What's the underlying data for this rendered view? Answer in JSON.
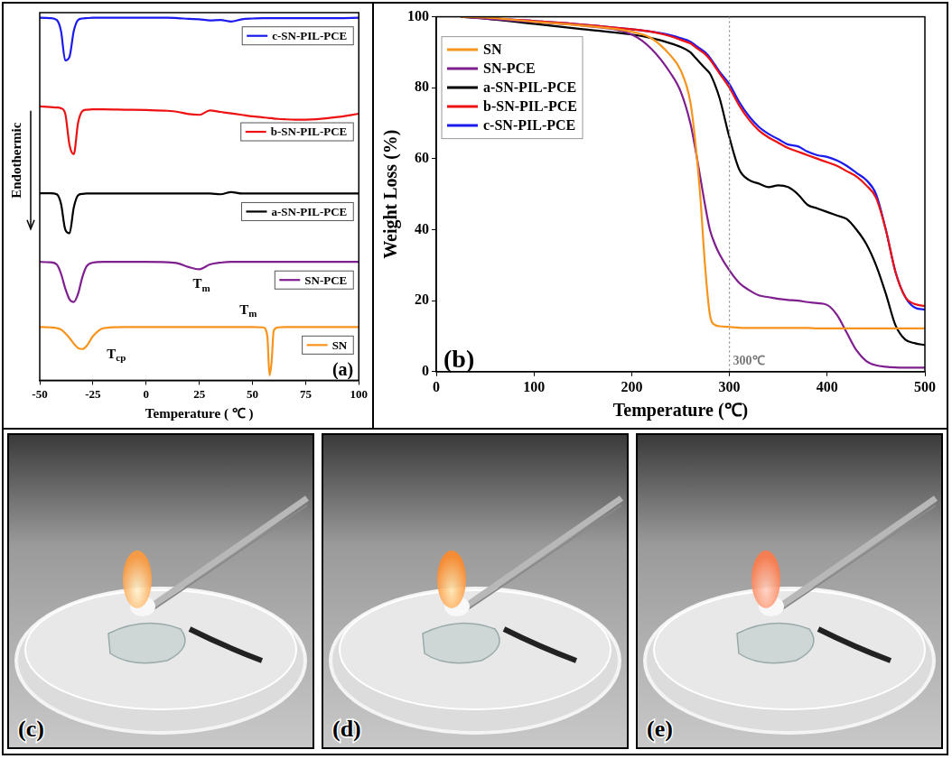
{
  "chart_data": [
    {
      "type": "line",
      "panel": "(a)",
      "xlabel": "Temperature ( ℃ )",
      "ylabel": "Endothermic",
      "x": [
        -50,
        -45,
        -42,
        -40,
        -38,
        -36,
        -34,
        -32,
        -30,
        -28,
        -25,
        -20,
        -10,
        0,
        10,
        15,
        20,
        25,
        30,
        35,
        40,
        45,
        50,
        55,
        57,
        58,
        59,
        60,
        62,
        65,
        70,
        75,
        80,
        90,
        100
      ],
      "series": [
        {
          "name": "c-SN-PIL-PCE",
          "color": "#1a1aee",
          "values": [
            98.6,
            98.5,
            98.0,
            95,
            87,
            88,
            95,
            98,
            98.4,
            98.5,
            98.6,
            98.6,
            98.6,
            98.6,
            98.6,
            98.5,
            98.3,
            98.2,
            97.9,
            98.0,
            97.6,
            98.2,
            98.4,
            98.5,
            98.5,
            98.5,
            98.5,
            98.5,
            98.5,
            98.5,
            98.5,
            98.5,
            98.5,
            98.5,
            98.6
          ]
        },
        {
          "name": "b-SN-PIL-PCE",
          "color": "#ee1111",
          "values": [
            74.5,
            74.3,
            74.2,
            74,
            72.5,
            64,
            61.5,
            70,
            73.2,
            73.6,
            73.7,
            73.7,
            73.6,
            73.5,
            73.3,
            73,
            72.4,
            72.2,
            73.4,
            73,
            72.6,
            72.2,
            71.8,
            71.5,
            71.4,
            71.3,
            71.3,
            71.2,
            71.1,
            71,
            70.9,
            70.9,
            71.0,
            71.6,
            72.5
          ]
        },
        {
          "name": "a-SN-PIL-PCE",
          "color": "#000000",
          "values": [
            50.9,
            50.9,
            50.6,
            48,
            41,
            40,
            47,
            50.3,
            50.7,
            50.8,
            50.8,
            50.8,
            50.8,
            50.8,
            50.8,
            50.8,
            50.8,
            50.8,
            50.8,
            50.6,
            51.2,
            50.8,
            50.8,
            50.8,
            50.8,
            50.8,
            50.8,
            50.8,
            50.8,
            50.8,
            50.8,
            50.8,
            50.8,
            50.8,
            50.8
          ]
        },
        {
          "name": "SN-PCE",
          "color": "#7f1f8f",
          "values": [
            32.2,
            32.1,
            31.5,
            29,
            25,
            22,
            21.3,
            23.5,
            28,
            31,
            32,
            32.2,
            32.2,
            32.2,
            32.1,
            31.8,
            30.8,
            30.2,
            31.5,
            32,
            32.2,
            32.2,
            32.2,
            32.2,
            32.2,
            32.2,
            32.2,
            32.2,
            32.2,
            32.2,
            32.2,
            32.2,
            32.2,
            32.2,
            32.2
          ]
        },
        {
          "name": "SN",
          "color": "#f7941d",
          "values": [
            14.5,
            14.4,
            14.2,
            13.8,
            12.8,
            11.5,
            10,
            8.8,
            8.5,
            9.3,
            12,
            14.2,
            14.5,
            14.5,
            14.5,
            14.5,
            14.5,
            14.5,
            14.5,
            14.5,
            14.5,
            14.5,
            14.5,
            14.4,
            12,
            1.4,
            5,
            13.5,
            14.4,
            14.5,
            14.5,
            14.5,
            14.5,
            14.5,
            14.5
          ]
        }
      ],
      "xlim": [
        -50,
        100
      ],
      "xticks": [
        -50,
        -25,
        0,
        25,
        50,
        75,
        100
      ],
      "ylim": [
        0,
        100
      ],
      "tick_labels": "x",
      "grid": false,
      "annotations": [
        {
          "text": "Tcp",
          "x": -14,
          "y": 7
        },
        {
          "text": "Tm",
          "x": 26,
          "y": 26
        },
        {
          "text": "Tm",
          "x": 48,
          "y": 19
        }
      ]
    },
    {
      "type": "line",
      "panel": "(b)",
      "xlabel": "Temperature (℃)",
      "ylabel": "Weight Loss (%)",
      "x": [
        25,
        50,
        100,
        150,
        200,
        220,
        240,
        250,
        260,
        265,
        270,
        275,
        280,
        285,
        290,
        300,
        310,
        320,
        330,
        340,
        350,
        360,
        370,
        380,
        390,
        400,
        410,
        420,
        430,
        440,
        450,
        460,
        470,
        480,
        490,
        500
      ],
      "series": [
        {
          "name": "SN",
          "color": "#f7941d",
          "values": [
            100,
            99.8,
            98.6,
            97.5,
            95.8,
            94,
            89,
            85,
            76,
            65,
            50,
            30,
            16,
            13.2,
            12.8,
            12.6,
            12.4,
            12.3,
            12.3,
            12.3,
            12.3,
            12.3,
            12.3,
            12.3,
            12.2,
            12.2,
            12.2,
            12.2,
            12.2,
            12.2,
            12.2,
            12.2,
            12.2,
            12.2,
            12.2,
            12.2
          ]
        },
        {
          "name": "SN-PCE",
          "color": "#7f1f8f",
          "values": [
            100,
            99.5,
            98.5,
            97.5,
            95,
            91,
            84,
            79,
            70,
            63,
            55,
            47,
            40,
            36,
            33,
            28.5,
            25,
            23,
            21.5,
            21,
            20.5,
            20.2,
            20,
            19.6,
            19.3,
            18.8,
            16,
            11,
            6,
            3,
            1.8,
            1.4,
            1.2,
            1.1,
            1.1,
            1.1
          ]
        },
        {
          "name": "a-SN-PIL-PCE",
          "color": "#000000",
          "values": [
            100,
            99.5,
            98,
            96.5,
            95,
            94,
            92.5,
            91.5,
            90,
            88.5,
            87,
            85.5,
            84,
            81,
            77,
            66,
            57,
            54,
            53,
            52,
            52.5,
            52,
            50,
            47,
            46,
            45,
            44,
            43,
            40,
            36,
            30,
            22,
            13,
            9,
            8,
            7.5
          ]
        },
        {
          "name": "b-SN-PIL-PCE",
          "color": "#ee1111",
          "values": [
            100,
            99.7,
            98.8,
            97.8,
            96.5,
            95.8,
            94.5,
            93.5,
            92.5,
            91.5,
            90.5,
            89.5,
            88,
            86,
            84,
            80,
            75,
            71,
            68,
            66,
            64.5,
            63,
            62,
            61,
            60,
            59,
            58,
            56.5,
            55,
            52.5,
            49,
            40,
            28,
            21,
            19,
            18.5
          ]
        },
        {
          "name": "c-SN-PIL-PCE",
          "color": "#1a1aee",
          "values": [
            100,
            99.7,
            98.8,
            97.8,
            96.5,
            95.8,
            94.8,
            94,
            93,
            92,
            91,
            90,
            88.5,
            86.5,
            84.5,
            81,
            76,
            72,
            69,
            67,
            65.5,
            64,
            63.5,
            62,
            61,
            60.5,
            59.5,
            58,
            56,
            54,
            50,
            40,
            28,
            21,
            18,
            17.5
          ]
        }
      ],
      "xlim": [
        0,
        500
      ],
      "xticks": [
        0,
        100,
        200,
        300,
        400,
        500
      ],
      "ylim": [
        0,
        100
      ],
      "yticks": [
        0,
        20,
        40,
        60,
        80,
        100
      ],
      "grid": false,
      "legend": "upper left",
      "annotations": [
        {
          "text": "300℃",
          "x": 300
        }
      ]
    }
  ],
  "photographs": [
    {
      "panel": "(c)"
    },
    {
      "panel": "(d)"
    },
    {
      "panel": "(e)"
    }
  ]
}
